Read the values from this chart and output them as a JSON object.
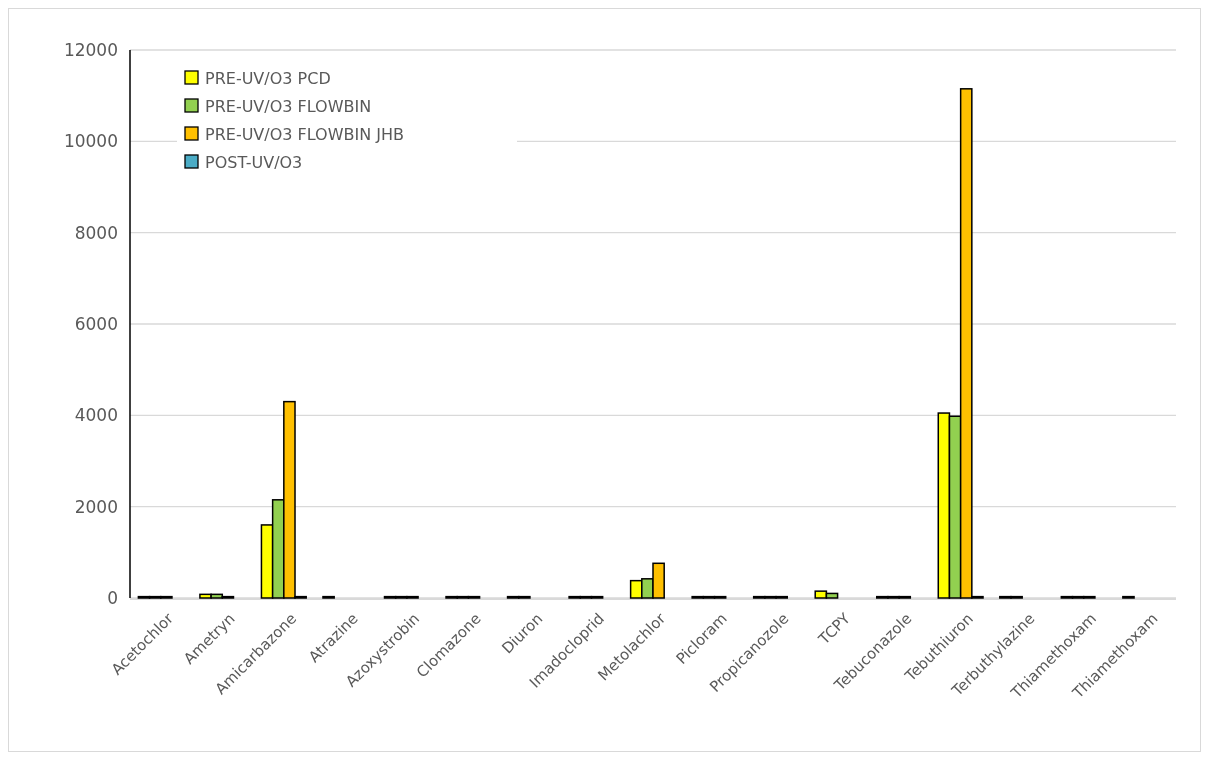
{
  "chart_data": {
    "type": "bar",
    "categories": [
      "Acetochlor",
      "Ametryn",
      "Amicarbazone",
      "Atrazine",
      "Azoxystrobin",
      "Clomazone",
      "Diuron",
      "Imadocloprid",
      "Metolachlor",
      "Picloram",
      "Propicanozole",
      "TCPY",
      "Tebuconazole",
      "Tebuthiuron",
      "Terbuthylazine",
      "Thiamethoxam",
      "Thiamethoxam"
    ],
    "series": [
      {
        "name": "PRE-UV/O3 PCD",
        "color": "#ffff00",
        "values": [
          30,
          80,
          1600,
          30,
          30,
          30,
          30,
          30,
          380,
          30,
          30,
          150,
          30,
          4050,
          30,
          30,
          30
        ]
      },
      {
        "name": "PRE-UV/O3 FLOWBIN",
        "color": "#92d050",
        "values": [
          30,
          80,
          2150,
          null,
          30,
          30,
          30,
          30,
          420,
          30,
          30,
          100,
          30,
          3980,
          30,
          30,
          null
        ]
      },
      {
        "name": "PRE-UV/O3 FLOWBIN JHB",
        "color": "#ffc000",
        "values": [
          30,
          30,
          4300,
          null,
          30,
          30,
          null,
          30,
          760,
          30,
          30,
          null,
          30,
          11150,
          null,
          30,
          null
        ]
      },
      {
        "name": "POST-UV/O3",
        "color": "#4bacc6",
        "values": [
          null,
          null,
          30,
          null,
          null,
          null,
          null,
          null,
          null,
          null,
          null,
          null,
          null,
          30,
          null,
          null,
          null
        ]
      }
    ],
    "ylim": [
      0,
      12000
    ],
    "yticks": [
      0,
      2000,
      4000,
      6000,
      8000,
      10000,
      12000
    ],
    "grid": "y",
    "legend": "top left"
  }
}
